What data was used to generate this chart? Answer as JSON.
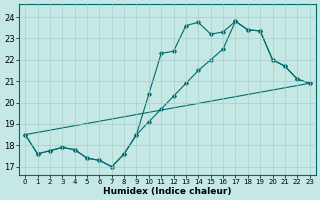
{
  "xlabel": "Humidex (Indice chaleur)",
  "bg_color": "#c5e8e5",
  "grid_color": "#a8ceca",
  "line_color": "#006b6b",
  "ylim": [
    16.6,
    24.6
  ],
  "xlim": [
    -0.5,
    23.5
  ],
  "yticks": [
    17,
    18,
    19,
    20,
    21,
    22,
    23,
    24
  ],
  "xticks": [
    0,
    1,
    2,
    3,
    4,
    5,
    6,
    7,
    8,
    9,
    10,
    11,
    12,
    13,
    14,
    15,
    16,
    17,
    18,
    19,
    20,
    21,
    22,
    23
  ],
  "line1_x": [
    0,
    1,
    2,
    3,
    4,
    5,
    6,
    7,
    8,
    9,
    10,
    11,
    12,
    13,
    14,
    15,
    16,
    17,
    18,
    19,
    20,
    21,
    22,
    23
  ],
  "line1_y": [
    18.5,
    17.6,
    17.75,
    17.9,
    17.8,
    17.4,
    17.3,
    17.0,
    17.6,
    18.5,
    20.4,
    22.3,
    22.4,
    23.6,
    23.75,
    23.2,
    23.3,
    23.8,
    23.4,
    23.35,
    22.0,
    21.7,
    21.1,
    20.9
  ],
  "line2_x": [
    0,
    1,
    2,
    3,
    4,
    5,
    6,
    7,
    8,
    9,
    10,
    11,
    12,
    13,
    14,
    15,
    16,
    17,
    18,
    19,
    20,
    21,
    22,
    23
  ],
  "line2_y": [
    18.5,
    17.6,
    17.75,
    17.9,
    17.8,
    17.4,
    17.3,
    17.0,
    17.6,
    18.5,
    19.1,
    19.7,
    20.3,
    20.9,
    21.5,
    22.0,
    22.5,
    23.8,
    23.4,
    23.35,
    22.0,
    21.7,
    21.1,
    20.9
  ],
  "line3_x": [
    0,
    23
  ],
  "line3_y": [
    18.5,
    20.9
  ]
}
